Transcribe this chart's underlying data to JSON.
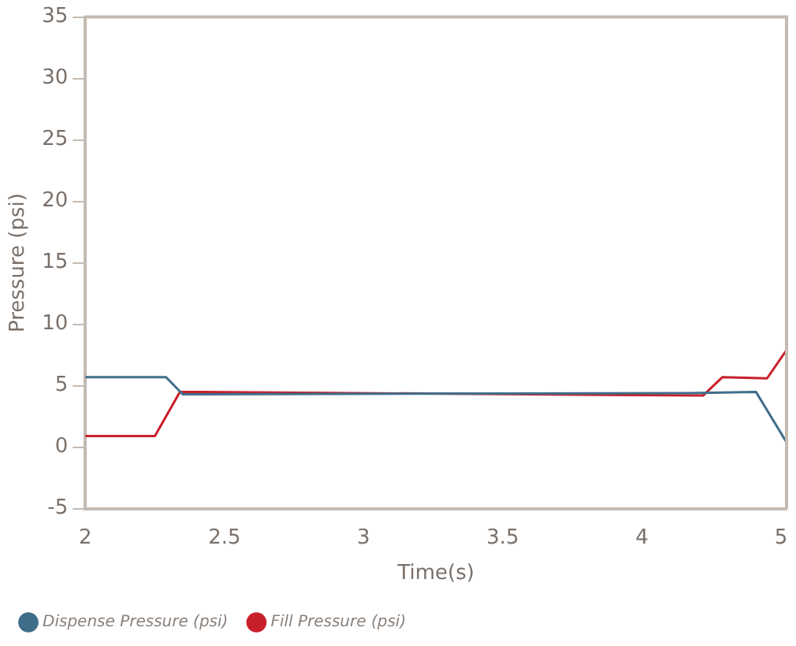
{
  "chart_data": {
    "type": "line",
    "xlabel": "Time(s)",
    "ylabel": "Pressure (psi)",
    "xlim": [
      2,
      4.52
    ],
    "xticks": [
      2,
      2.5,
      3,
      3.5,
      4,
      {
        "value": 4.5,
        "label": "5"
      }
    ],
    "ylim": [
      -5,
      35
    ],
    "yticks": [
      -5,
      0,
      5,
      10,
      15,
      20,
      25,
      30,
      35
    ],
    "grid": false,
    "legend": "bottom",
    "marker": "none",
    "line_style": "solid",
    "series": [
      {
        "name": "Dispense Pressure (psi)",
        "color": "#3f6e8a",
        "x": [
          2,
          2.29,
          2.35,
          4.17,
          4.41,
          4.52
        ],
        "values": [
          5.7,
          5.7,
          4.3,
          4.4,
          4.5,
          0.4
        ]
      },
      {
        "name": "Fill Pressure (psi)",
        "color": "#c8202b",
        "x": [
          2,
          2.25,
          2.34,
          4.22,
          4.29,
          4.45,
          4.52
        ],
        "values": [
          0.9,
          0.9,
          4.5,
          4.2,
          5.7,
          5.6,
          7.9
        ]
      }
    ]
  }
}
